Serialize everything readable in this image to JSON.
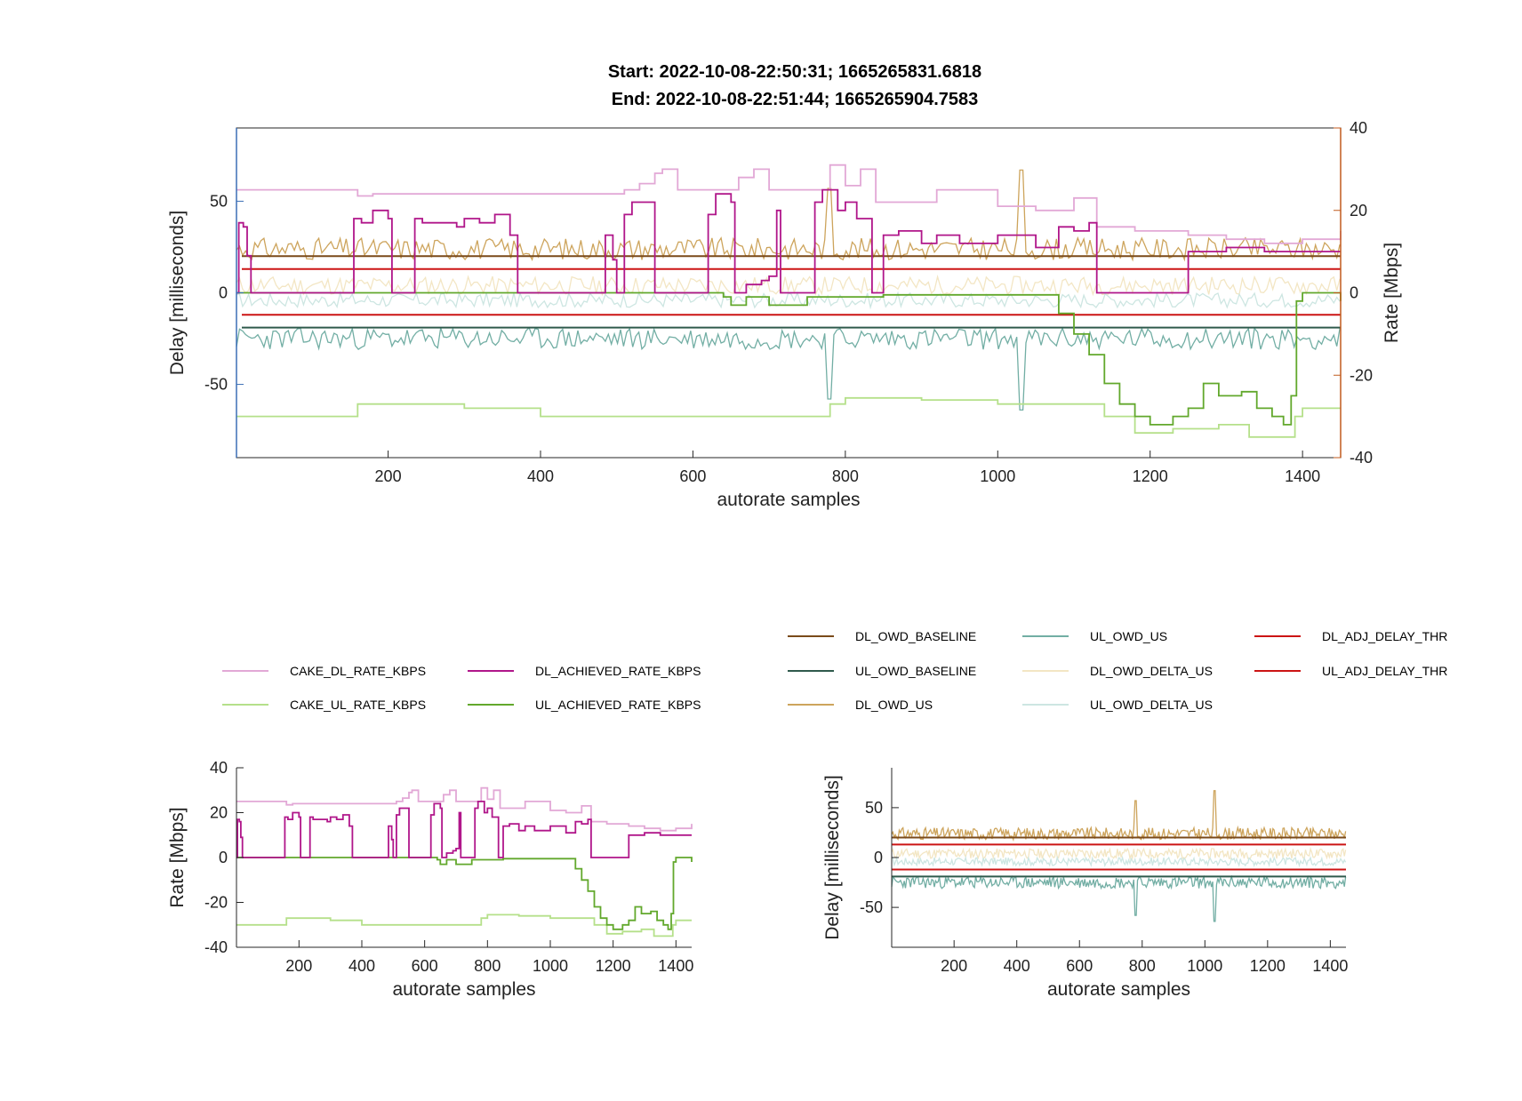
{
  "title": {
    "line1": "Start: 2022-10-08-22:50:31; 1665265831.6818",
    "line2": "End:   2022-10-08-22:51:44; 1665265904.7583"
  },
  "colors": {
    "CAKE_DL_RATE_KBPS": "#e2a8d6",
    "DL_ACHIEVED_RATE_KBPS": "#b0168a",
    "CAKE_UL_RATE_KBPS": "#b5e08a",
    "UL_ACHIEVED_RATE_KBPS": "#62a82c",
    "DL_OWD_BASELINE": "#7a4a1a",
    "UL_OWD_BASELINE": "#2f5a4c",
    "DL_OWD_US": "#cda45c",
    "UL_OWD_US": "#72aea4",
    "DL_OWD_DELTA_US": "#f3e6c4",
    "UL_OWD_DELTA_US": "#cde6e2",
    "DL_ADJ_DELAY_THR": "#cc1414",
    "UL_ADJ_DELAY_THR": "#cc1414",
    "left_axis": "#3b6fb5",
    "right_axis": "#c15a1d"
  },
  "legend": {
    "rate": [
      "CAKE_DL_RATE_KBPS",
      "DL_ACHIEVED_RATE_KBPS",
      "CAKE_UL_RATE_KBPS",
      "UL_ACHIEVED_RATE_KBPS"
    ],
    "delay": [
      "DL_OWD_BASELINE",
      "UL_OWD_US",
      "DL_ADJ_DELAY_THR",
      "UL_OWD_BASELINE",
      "DL_OWD_DELTA_US",
      "UL_ADJ_DELAY_THR",
      "DL_OWD_US",
      "UL_OWD_DELTA_US"
    ]
  },
  "chart_data": [
    {
      "type": "line",
      "panel": "top",
      "xlabel": "autorate samples",
      "ylabel_left": "Delay [milliseconds]",
      "ylabel_right": "Rate [Mbps]",
      "xlim": [
        1,
        1450
      ],
      "ylim_left": [
        -90,
        90
      ],
      "ylim_right": [
        -40,
        40
      ],
      "xticks": [
        200,
        400,
        600,
        800,
        1000,
        1200,
        1400
      ],
      "yticks_left": [
        -50,
        0,
        50
      ],
      "yticks_right": [
        -40,
        -20,
        0,
        20,
        40
      ],
      "grid": false,
      "rate_series": {
        "CAKE_DL_RATE_KBPS": [
          [
            1,
            25
          ],
          [
            150,
            25
          ],
          [
            160,
            23.5
          ],
          [
            180,
            24
          ],
          [
            500,
            24
          ],
          [
            510,
            25
          ],
          [
            530,
            26.5
          ],
          [
            550,
            29
          ],
          [
            560,
            30
          ],
          [
            580,
            25
          ],
          [
            650,
            25
          ],
          [
            660,
            28
          ],
          [
            680,
            30
          ],
          [
            700,
            25
          ],
          [
            760,
            25
          ],
          [
            780,
            31
          ],
          [
            800,
            26
          ],
          [
            820,
            30
          ],
          [
            840,
            22
          ],
          [
            880,
            22
          ],
          [
            920,
            25
          ],
          [
            1000,
            21
          ],
          [
            1050,
            20
          ],
          [
            1100,
            23
          ],
          [
            1130,
            16
          ],
          [
            1180,
            15
          ],
          [
            1250,
            14
          ],
          [
            1300,
            13
          ],
          [
            1350,
            12
          ],
          [
            1400,
            13
          ],
          [
            1450,
            15
          ]
        ],
        "DL_ACHIEVED_RATE_KBPS": [
          [
            1,
            0
          ],
          [
            4,
            17
          ],
          [
            10,
            16
          ],
          [
            15,
            9
          ],
          [
            20,
            0
          ],
          [
            150,
            0
          ],
          [
            155,
            18
          ],
          [
            165,
            17
          ],
          [
            180,
            20
          ],
          [
            200,
            18
          ],
          [
            205,
            0
          ],
          [
            230,
            0
          ],
          [
            235,
            18
          ],
          [
            245,
            17
          ],
          [
            290,
            16
          ],
          [
            300,
            18
          ],
          [
            320,
            17
          ],
          [
            340,
            19
          ],
          [
            360,
            14
          ],
          [
            370,
            0
          ],
          [
            480,
            0
          ],
          [
            485,
            14
          ],
          [
            495,
            8
          ],
          [
            500,
            0
          ],
          [
            510,
            19
          ],
          [
            520,
            22
          ],
          [
            540,
            22
          ],
          [
            550,
            0
          ],
          [
            610,
            0
          ],
          [
            620,
            19
          ],
          [
            630,
            24
          ],
          [
            650,
            22
          ],
          [
            655,
            0
          ],
          [
            670,
            2
          ],
          [
            690,
            3
          ],
          [
            700,
            4
          ],
          [
            710,
            20
          ],
          [
            715,
            0
          ],
          [
            750,
            0
          ],
          [
            760,
            22
          ],
          [
            770,
            25
          ],
          [
            790,
            20
          ],
          [
            800,
            22
          ],
          [
            815,
            18
          ],
          [
            835,
            0
          ],
          [
            850,
            14
          ],
          [
            870,
            15
          ],
          [
            900,
            12
          ],
          [
            920,
            14
          ],
          [
            950,
            12
          ],
          [
            1000,
            14
          ],
          [
            1050,
            11
          ],
          [
            1080,
            16
          ],
          [
            1100,
            15
          ],
          [
            1120,
            17
          ],
          [
            1130,
            0
          ],
          [
            1240,
            0
          ],
          [
            1250,
            10
          ],
          [
            1300,
            11
          ],
          [
            1350,
            10
          ],
          [
            1400,
            10
          ],
          [
            1450,
            10
          ]
        ],
        "CAKE_UL_RATE_KBPS": [
          [
            1,
            -30
          ],
          [
            150,
            -30
          ],
          [
            160,
            -27
          ],
          [
            300,
            -28
          ],
          [
            400,
            -30
          ],
          [
            500,
            -30
          ],
          [
            770,
            -30
          ],
          [
            780,
            -27
          ],
          [
            800,
            -25.5
          ],
          [
            900,
            -26
          ],
          [
            1000,
            -27
          ],
          [
            1100,
            -27
          ],
          [
            1140,
            -30
          ],
          [
            1180,
            -34
          ],
          [
            1230,
            -33
          ],
          [
            1290,
            -32
          ],
          [
            1330,
            -35
          ],
          [
            1380,
            -35
          ],
          [
            1390,
            -30
          ],
          [
            1400,
            -28
          ],
          [
            1450,
            -28
          ]
        ],
        "UL_ACHIEVED_RATE_KBPS": [
          [
            1,
            0
          ],
          [
            600,
            0
          ],
          [
            630,
            0
          ],
          [
            640,
            -1
          ],
          [
            650,
            -3
          ],
          [
            670,
            -1
          ],
          [
            700,
            -3
          ],
          [
            750,
            -1
          ],
          [
            800,
            -1
          ],
          [
            850,
            -0.5
          ],
          [
            1070,
            -0.5
          ],
          [
            1080,
            -5
          ],
          [
            1100,
            -10
          ],
          [
            1120,
            -15
          ],
          [
            1140,
            -22
          ],
          [
            1160,
            -27
          ],
          [
            1180,
            -30
          ],
          [
            1200,
            -32
          ],
          [
            1230,
            -30
          ],
          [
            1250,
            -28
          ],
          [
            1270,
            -22
          ],
          [
            1290,
            -25
          ],
          [
            1320,
            -24
          ],
          [
            1340,
            -28
          ],
          [
            1360,
            -30
          ],
          [
            1375,
            -32
          ],
          [
            1385,
            -25
          ],
          [
            1392,
            -2
          ],
          [
            1400,
            0
          ],
          [
            1430,
            0
          ],
          [
            1450,
            -2
          ]
        ]
      },
      "delay_series": {
        "DL_OWD_BASELINE": 20,
        "UL_OWD_BASELINE": -19,
        "DL_ADJ_DELAY_THR": 13,
        "UL_ADJ_DELAY_THR": -12,
        "DL_OWD_US_mean": 24,
        "UL_OWD_US_mean": -25,
        "DL_OWD_DELTA_US_mean": 4,
        "UL_OWD_DELTA_US_mean": -4,
        "DL_OWD_US_peak": [
          1030,
          67
        ],
        "UL_OWD_US_dip": [
          1030,
          -64
        ]
      }
    },
    {
      "type": "line",
      "panel": "bottom-left",
      "xlabel": "autorate samples",
      "ylabel": "Rate [Mbps]",
      "xlim": [
        1,
        1450
      ],
      "ylim": [
        -40,
        40
      ],
      "xticks": [
        200,
        400,
        600,
        800,
        1000,
        1200,
        1400
      ],
      "yticks": [
        -40,
        -20,
        0,
        20,
        40
      ],
      "series": [
        "CAKE_DL_RATE_KBPS",
        "DL_ACHIEVED_RATE_KBPS",
        "CAKE_UL_RATE_KBPS",
        "UL_ACHIEVED_RATE_KBPS"
      ]
    },
    {
      "type": "line",
      "panel": "bottom-right",
      "xlabel": "autorate samples",
      "ylabel": "Delay [milliseconds]",
      "xlim": [
        1,
        1450
      ],
      "ylim": [
        -90,
        90
      ],
      "xticks": [
        200,
        400,
        600,
        800,
        1000,
        1200,
        1400
      ],
      "yticks": [
        -50,
        0,
        50
      ],
      "series": [
        "DL_OWD_BASELINE",
        "UL_OWD_BASELINE",
        "DL_OWD_US",
        "UL_OWD_US",
        "DL_OWD_DELTA_US",
        "UL_OWD_DELTA_US",
        "DL_ADJ_DELAY_THR",
        "UL_ADJ_DELAY_THR"
      ]
    }
  ]
}
